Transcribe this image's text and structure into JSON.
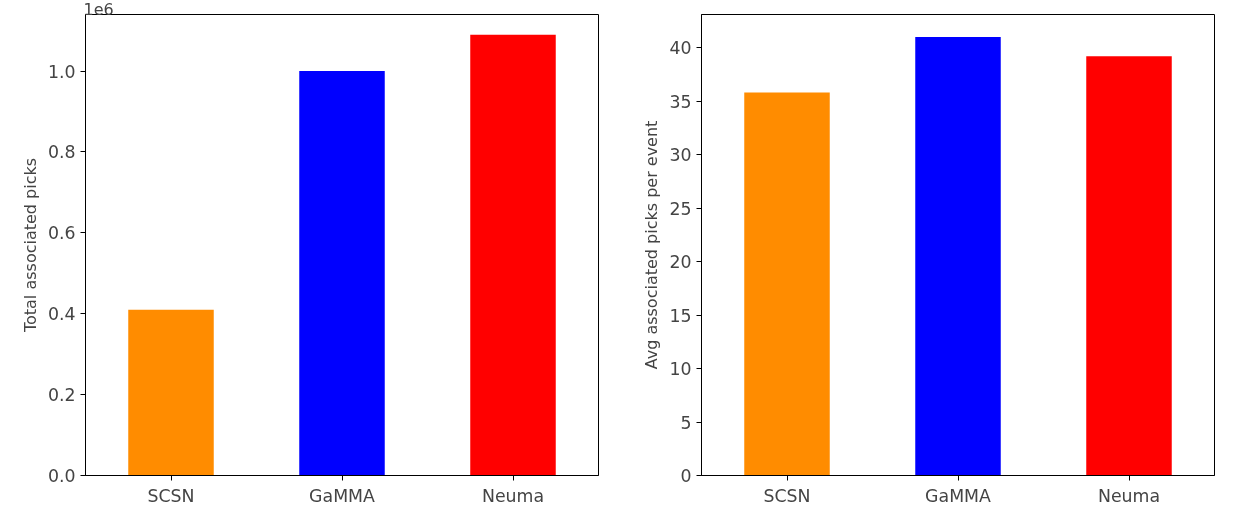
{
  "chart_data": [
    {
      "type": "bar",
      "ylabel": "Total associated picks",
      "categories": [
        "SCSN",
        "GaMMA",
        "Neuma"
      ],
      "values": [
        0.41,
        1.0,
        1.09
      ],
      "colors": [
        "#ff8c00",
        "#0000ff",
        "#ff0000"
      ],
      "ylim": [
        0,
        1.14
      ],
      "yticks": [
        {
          "value": 0,
          "label": "0.0"
        },
        {
          "value": 0.2,
          "label": "0.2"
        },
        {
          "value": 0.4,
          "label": "0.4"
        },
        {
          "value": 0.6,
          "label": "0.6"
        },
        {
          "value": 0.8,
          "label": "0.8"
        },
        {
          "value": 1.0,
          "label": "1.0"
        }
      ],
      "annotations": [
        "1e6"
      ],
      "grid": false
    },
    {
      "type": "bar",
      "ylabel": "Avg associated picks per event",
      "categories": [
        "SCSN",
        "GaMMA",
        "Neuma"
      ],
      "values": [
        35.8,
        41.0,
        39.2
      ],
      "colors": [
        "#ff8c00",
        "#0000ff",
        "#ff0000"
      ],
      "ylim": [
        0,
        43.1
      ],
      "yticks": [
        0,
        5,
        10,
        15,
        20,
        25,
        30,
        35,
        40
      ],
      "grid": false
    }
  ]
}
